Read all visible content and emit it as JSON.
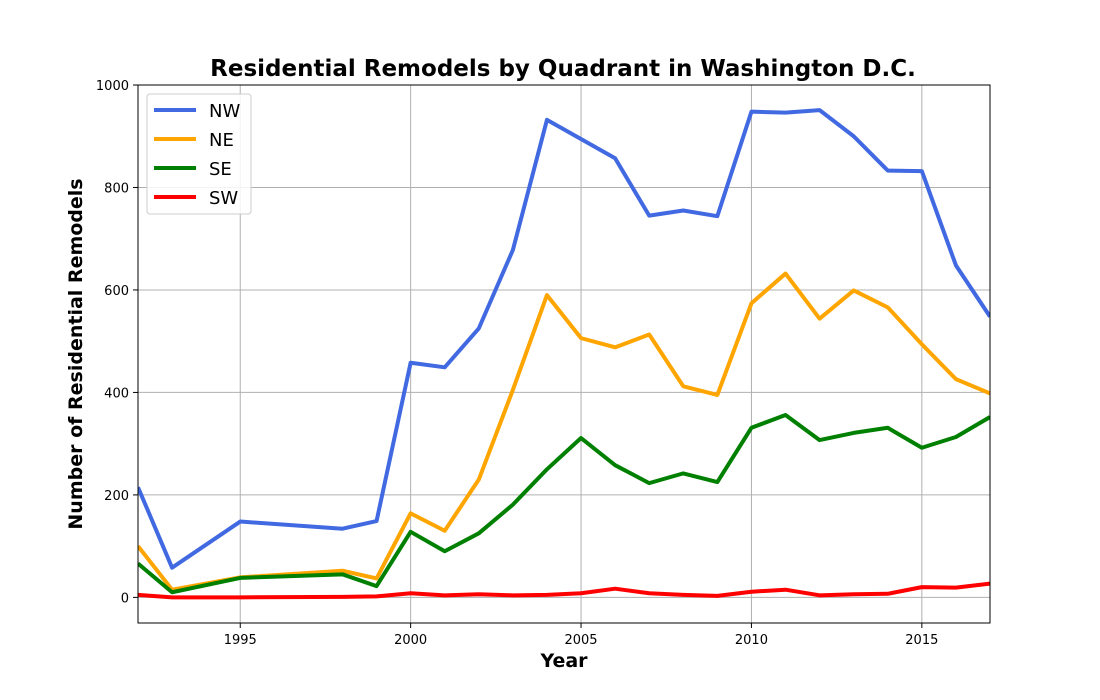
{
  "chart_data": {
    "type": "line",
    "title": "Residential Remodels by Quadrant in Washington D.C.",
    "xlabel": "Year",
    "ylabel": "Number of Residential Remodels",
    "xlim": [
      1992,
      2017
    ],
    "ylim": [
      -50,
      1000
    ],
    "xticks": [
      1995,
      2000,
      2005,
      2010,
      2015
    ],
    "yticks": [
      0,
      200,
      400,
      600,
      800,
      1000
    ],
    "grid": true,
    "legend_position": "top-left",
    "series": [
      {
        "name": "NW",
        "color": "#4169e1",
        "points": [
          [
            1992,
            215
          ],
          [
            1993,
            58
          ],
          [
            1995,
            148
          ],
          [
            1998,
            134
          ],
          [
            1999,
            149
          ],
          [
            2000,
            458
          ],
          [
            2001,
            449
          ],
          [
            2002,
            525
          ],
          [
            2003,
            678
          ],
          [
            2004,
            932
          ],
          [
            2006,
            857
          ],
          [
            2007,
            745
          ],
          [
            2008,
            755
          ],
          [
            2009,
            744
          ],
          [
            2010,
            948
          ],
          [
            2011,
            946
          ],
          [
            2012,
            951
          ],
          [
            2013,
            900
          ],
          [
            2014,
            833
          ],
          [
            2015,
            832
          ],
          [
            2016,
            648
          ],
          [
            2017,
            548
          ]
        ]
      },
      {
        "name": "NE",
        "color": "#ffa500",
        "points": [
          [
            1992,
            100
          ],
          [
            1993,
            15
          ],
          [
            1995,
            39
          ],
          [
            1998,
            52
          ],
          [
            1999,
            37
          ],
          [
            2000,
            164
          ],
          [
            2001,
            130
          ],
          [
            2002,
            230
          ],
          [
            2003,
            405
          ],
          [
            2004,
            590
          ],
          [
            2005,
            506
          ],
          [
            2006,
            488
          ],
          [
            2007,
            513
          ],
          [
            2008,
            412
          ],
          [
            2009,
            395
          ],
          [
            2010,
            574
          ],
          [
            2011,
            632
          ],
          [
            2012,
            544
          ],
          [
            2013,
            599
          ],
          [
            2014,
            566
          ],
          [
            2015,
            494
          ],
          [
            2016,
            426
          ],
          [
            2017,
            398
          ]
        ]
      },
      {
        "name": "SE",
        "color": "#008000",
        "points": [
          [
            1992,
            66
          ],
          [
            1993,
            10
          ],
          [
            1995,
            38
          ],
          [
            1998,
            45
          ],
          [
            1999,
            22
          ],
          [
            2000,
            128
          ],
          [
            2001,
            90
          ],
          [
            2002,
            125
          ],
          [
            2003,
            181
          ],
          [
            2004,
            250
          ],
          [
            2005,
            311
          ],
          [
            2006,
            258
          ],
          [
            2007,
            223
          ],
          [
            2008,
            242
          ],
          [
            2009,
            225
          ],
          [
            2010,
            331
          ],
          [
            2011,
            356
          ],
          [
            2012,
            307
          ],
          [
            2013,
            321
          ],
          [
            2014,
            331
          ],
          [
            2015,
            292
          ],
          [
            2016,
            313
          ],
          [
            2017,
            352
          ]
        ]
      },
      {
        "name": "SW",
        "color": "#ff0000",
        "points": [
          [
            1992,
            5
          ],
          [
            1993,
            0
          ],
          [
            1995,
            0
          ],
          [
            1998,
            1
          ],
          [
            1999,
            2
          ],
          [
            2000,
            8
          ],
          [
            2001,
            4
          ],
          [
            2002,
            6
          ],
          [
            2003,
            4
          ],
          [
            2004,
            5
          ],
          [
            2005,
            8
          ],
          [
            2006,
            17
          ],
          [
            2007,
            8
          ],
          [
            2008,
            5
          ],
          [
            2009,
            3
          ],
          [
            2010,
            11
          ],
          [
            2011,
            15
          ],
          [
            2012,
            4
          ],
          [
            2013,
            6
          ],
          [
            2014,
            7
          ],
          [
            2015,
            20
          ],
          [
            2016,
            19
          ],
          [
            2017,
            27
          ]
        ]
      }
    ]
  }
}
